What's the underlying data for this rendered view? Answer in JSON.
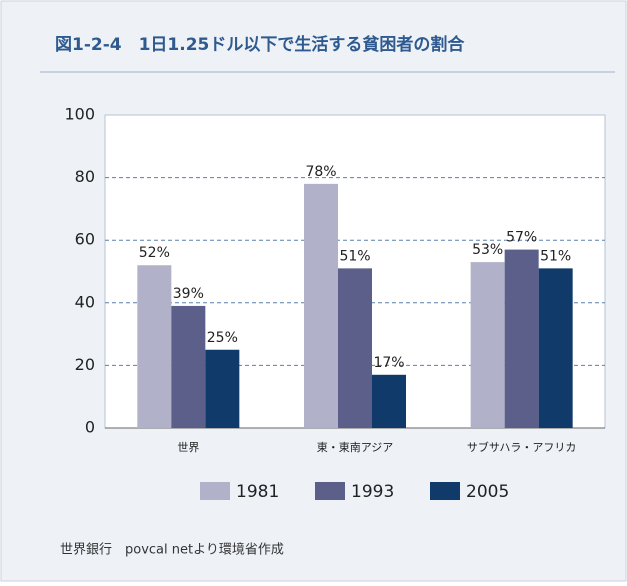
{
  "chart_data": {
    "type": "bar",
    "title": "図1-2-4　1日1.25ドル以下で生活する貧困者の割合",
    "categories": [
      "世界",
      "東・東南アジア",
      "サブサハラ・アフリカ"
    ],
    "series": [
      {
        "name": "1981",
        "color": "#b1b1c9",
        "values": [
          52,
          78,
          53
        ],
        "value_labels": [
          "52%",
          "78%",
          "53%"
        ]
      },
      {
        "name": "1993",
        "color": "#5b5f89",
        "values": [
          39,
          51,
          57
        ],
        "value_labels": [
          "39%",
          "51%",
          "57%"
        ]
      },
      {
        "name": "2005",
        "color": "#0f3a69",
        "values": [
          25,
          17,
          51
        ],
        "value_labels": [
          "25%",
          "17%",
          "51%"
        ]
      }
    ],
    "ylim": [
      0,
      100
    ],
    "yticks": [
      0,
      20,
      40,
      60,
      80,
      100
    ],
    "grid": true,
    "source": "世界銀行　povcal netより環境省作成"
  }
}
